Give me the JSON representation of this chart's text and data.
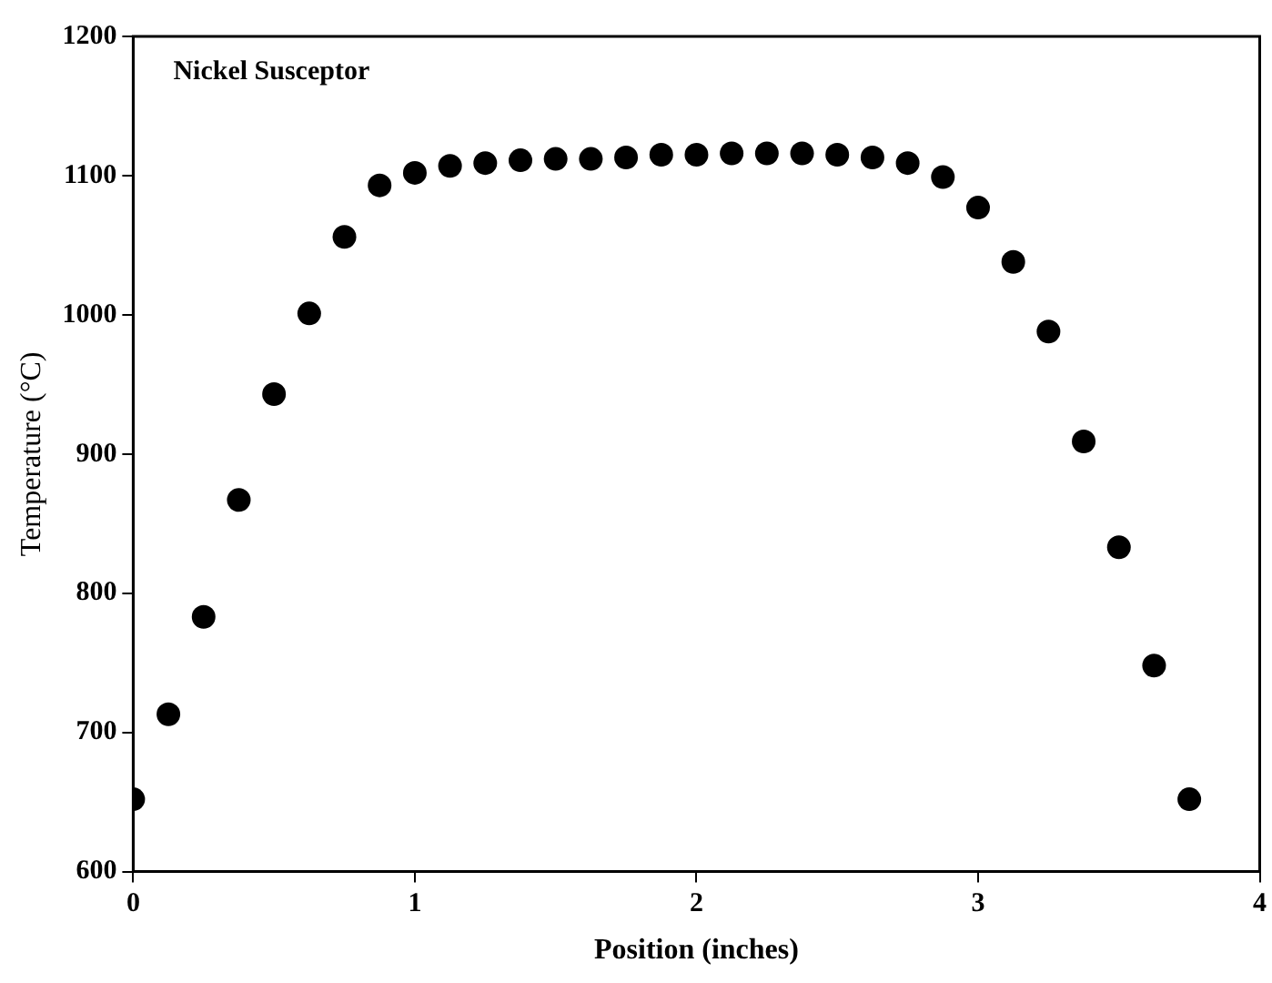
{
  "chart_data": {
    "type": "scatter",
    "xlabel": "Position (inches)",
    "ylabel": "Temperature (°C)",
    "annotations": [
      "Nickel Susceptor"
    ],
    "x": [
      0,
      0.125,
      0.25,
      0.375,
      0.5,
      0.625,
      0.75,
      0.875,
      1,
      1.125,
      1.25,
      1.375,
      1.5,
      1.625,
      1.75,
      1.875,
      2,
      2.125,
      2.25,
      2.375,
      2.5,
      2.625,
      2.75,
      2.875,
      3,
      3.125,
      3.25,
      3.375,
      3.5,
      3.625,
      3.75
    ],
    "series": [
      {
        "color": "#000000",
        "values": [
          652,
          713,
          783,
          867,
          943,
          1001,
          1056,
          1093,
          1102,
          1107,
          1109,
          1111,
          1112,
          1112,
          1113,
          1115,
          1115,
          1116,
          1116,
          1116,
          1115,
          1113,
          1109,
          1099,
          1077,
          1038,
          988,
          909,
          833,
          748,
          652
        ]
      }
    ],
    "xlim": [
      0,
      4
    ],
    "xticks": [
      0,
      1,
      2,
      3,
      4
    ],
    "ylim": [
      600,
      1200
    ],
    "yticks": [
      600,
      700,
      800,
      900,
      1000,
      1100,
      1200
    ],
    "grid": false,
    "legend": false,
    "marker": "circle"
  }
}
